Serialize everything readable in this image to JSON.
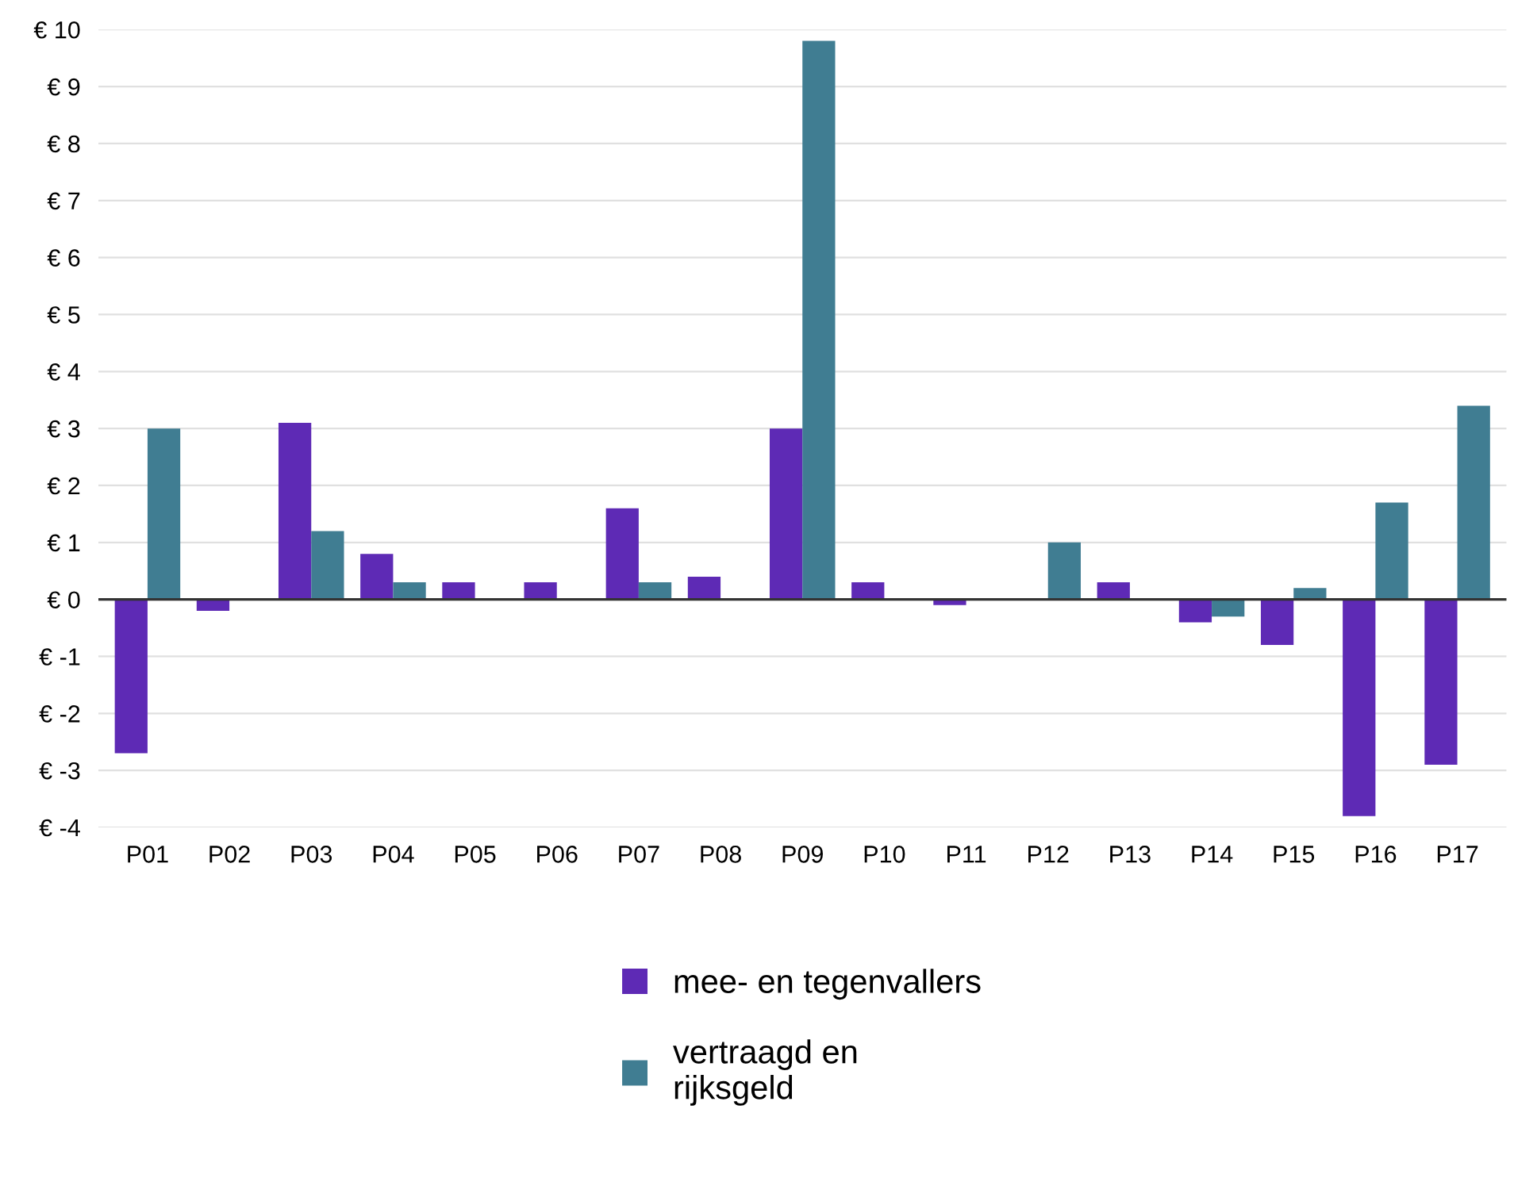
{
  "chart_data": {
    "type": "bar",
    "categories": [
      "P01",
      "P02",
      "P03",
      "P04",
      "P05",
      "P06",
      "P07",
      "P08",
      "P09",
      "P10",
      "P11",
      "P12",
      "P13",
      "P14",
      "P15",
      "P16",
      "P17"
    ],
    "series": [
      {
        "name": "mee- en tegenvallers",
        "color": "#5e2ab5",
        "values": [
          -2.7,
          -0.2,
          3.1,
          0.8,
          0.3,
          0.3,
          1.6,
          0.4,
          3.0,
          0.3,
          -0.1,
          null,
          0.3,
          -0.4,
          -0.8,
          -3.8,
          -2.9
        ]
      },
      {
        "name": "vertraagd en\nrijksgeld",
        "color": "#407d92",
        "values": [
          3.0,
          null,
          1.2,
          0.3,
          null,
          null,
          0.3,
          null,
          9.8,
          null,
          null,
          1.0,
          null,
          -0.3,
          0.2,
          1.7,
          3.4
        ]
      }
    ],
    "ylim": [
      -4,
      10
    ],
    "yticks": [
      {
        "value": -4,
        "label": "€ -4"
      },
      {
        "value": -3,
        "label": "€ -3"
      },
      {
        "value": -2,
        "label": "€ -2"
      },
      {
        "value": -1,
        "label": "€ -1"
      },
      {
        "value": 0,
        "label": "€ 0"
      },
      {
        "value": 1,
        "label": "€ 1"
      },
      {
        "value": 2,
        "label": "€ 2"
      },
      {
        "value": 3,
        "label": "€ 3"
      },
      {
        "value": 4,
        "label": "€ 4"
      },
      {
        "value": 5,
        "label": "€ 5"
      },
      {
        "value": 6,
        "label": "€ 6"
      },
      {
        "value": 7,
        "label": "€ 7"
      },
      {
        "value": 8,
        "label": "€ 8"
      },
      {
        "value": 9,
        "label": "€ 9"
      },
      {
        "value": 10,
        "label": "€ 10"
      }
    ],
    "grid": "y",
    "legend": "bottom"
  }
}
